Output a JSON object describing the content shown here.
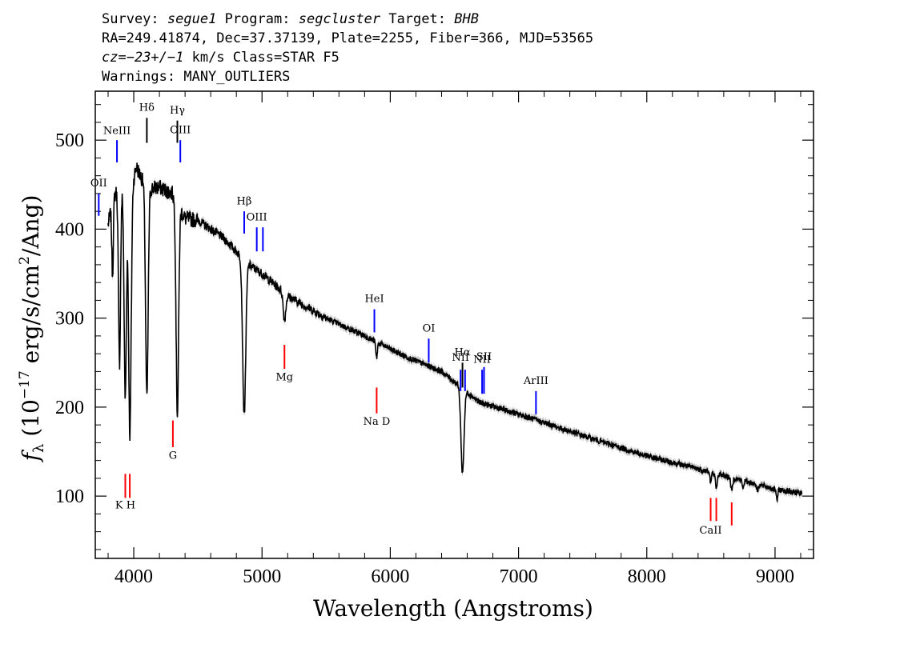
{
  "header": {
    "survey_label": "Survey:",
    "survey": "segue1",
    "program_label": "Program:",
    "program": "segcluster",
    "target_label": "Target:",
    "target": "BHB",
    "line2": "RA=249.41874, Dec=37.37139, Plate=2255, Fiber=366, MJD=53565",
    "cz_label": "cz=",
    "cz_value": "−23+/−1",
    "cz_units": " km/s Class=STAR F5",
    "warnings": "Warnings: MANY_OUTLIERS"
  },
  "chart_data": {
    "type": "line",
    "title": "",
    "xlabel": "Wavelength (Angstroms)",
    "ylabel": "f_λ (10^-17 erg/s/cm^2/Ang)",
    "xlim": [
      3700,
      9300
    ],
    "ylim": [
      30,
      555
    ],
    "x_ticks": [
      4000,
      5000,
      6000,
      7000,
      8000,
      9000
    ],
    "y_ticks": [
      100,
      200,
      300,
      400,
      500
    ],
    "colors": {
      "spectrum": "#000000",
      "error_band": "#b0b0b0",
      "emission": "#0000ff",
      "absorption": "#ff0000",
      "neutral": "#000000"
    },
    "continuum": {
      "x": [
        3800,
        3850,
        3900,
        4000,
        4020,
        4100,
        4200,
        4300,
        4400,
        4500,
        4700,
        4900,
        5000,
        5200,
        5500,
        5800,
        6100,
        6400,
        6700,
        7000,
        7500,
        8000,
        8500,
        9000,
        9200
      ],
      "y": [
        405,
        440,
        445,
        458,
        470,
        445,
        447,
        440,
        412,
        410,
        390,
        360,
        350,
        325,
        300,
        280,
        258,
        240,
        205,
        192,
        168,
        145,
        127,
        108,
        103
      ]
    },
    "absorption_features": [
      {
        "center": 3835,
        "depth": 80,
        "width": 6
      },
      {
        "center": 3889,
        "depth": 195,
        "width": 8
      },
      {
        "center": 3934,
        "depth": 240,
        "width": 9
      },
      {
        "center": 3970,
        "depth": 285,
        "width": 10
      },
      {
        "center": 4102,
        "depth": 235,
        "width": 10
      },
      {
        "center": 4340,
        "depth": 235,
        "width": 10
      },
      {
        "center": 4861,
        "depth": 175,
        "width": 12
      },
      {
        "center": 5175,
        "depth": 30,
        "width": 10
      },
      {
        "center": 5893,
        "depth": 18,
        "width": 6
      },
      {
        "center": 6563,
        "depth": 95,
        "width": 12
      },
      {
        "center": 8498,
        "depth": 12,
        "width": 6
      },
      {
        "center": 8542,
        "depth": 18,
        "width": 7
      },
      {
        "center": 8662,
        "depth": 15,
        "width": 7
      },
      {
        "center": 8750,
        "depth": 8,
        "width": 6
      },
      {
        "center": 8863,
        "depth": 7,
        "width": 6
      },
      {
        "center": 9015,
        "depth": 12,
        "width": 6
      }
    ],
    "line_markers": [
      {
        "label": "NeIII",
        "wave": 3869,
        "color": "blue",
        "y0": 475,
        "y1": 500,
        "label_y": 507
      },
      {
        "label": "OII",
        "wave": 3727,
        "color": "blue",
        "y0": 415,
        "y1": 440,
        "label_y": 448
      },
      {
        "label": "Hδ",
        "wave": 4102,
        "color": "black",
        "y0": 497,
        "y1": 525,
        "label_y": 533
      },
      {
        "label": "Hγ",
        "wave": 4340,
        "color": "black",
        "y0": 497,
        "y1": 522,
        "label_y": 530
      },
      {
        "label": "OIII",
        "wave": 4363,
        "color": "blue",
        "y0": 475,
        "y1": 500,
        "label_y": 508
      },
      {
        "label": "Hβ",
        "wave": 4861,
        "color": "blue",
        "y0": 395,
        "y1": 420,
        "label_y": 428
      },
      {
        "label": "OIII",
        "wave": 4959,
        "color": "blue",
        "y0": 375,
        "y1": 402,
        "label_y": 410
      },
      {
        "label": "",
        "wave": 5007,
        "color": "blue",
        "y0": 375,
        "y1": 402,
        "label_y": 0
      },
      {
        "label": "HeI",
        "wave": 5876,
        "color": "blue",
        "y0": 284,
        "y1": 310,
        "label_y": 318
      },
      {
        "label": "OI",
        "wave": 6300,
        "color": "blue",
        "y0": 250,
        "y1": 277,
        "label_y": 285
      },
      {
        "label": "NII",
        "wave": 6548,
        "color": "blue",
        "y0": 218,
        "y1": 242,
        "label_y": 252
      },
      {
        "label": "Hα",
        "wave": 6563,
        "color": "black",
        "y0": 222,
        "y1": 250,
        "label_y": 258
      },
      {
        "label": "",
        "wave": 6583,
        "color": "blue",
        "y0": 218,
        "y1": 242,
        "label_y": 0
      },
      {
        "label": "NII",
        "wave": 6716,
        "color": "blue",
        "y0": 215,
        "y1": 242,
        "label_y": 250
      },
      {
        "label": "SII",
        "wave": 6731,
        "color": "blue",
        "y0": 215,
        "y1": 245,
        "label_y": 253
      },
      {
        "label": "ArIII",
        "wave": 7136,
        "color": "blue",
        "y0": 192,
        "y1": 218,
        "label_y": 226
      },
      {
        "label": "G",
        "wave": 4305,
        "color": "red",
        "y0": 155,
        "y1": 185,
        "label_y": 142
      },
      {
        "label": "Mg",
        "wave": 5175,
        "color": "red",
        "y0": 243,
        "y1": 270,
        "label_y": 230
      },
      {
        "label": "Na D",
        "wave": 5894,
        "color": "red",
        "y0": 193,
        "y1": 222,
        "label_y": 180
      },
      {
        "label": "K H",
        "wave": 3934,
        "color": "red",
        "y0": 98,
        "y1": 125,
        "label_y": 86
      },
      {
        "label": "",
        "wave": 3969,
        "color": "red",
        "y0": 98,
        "y1": 125,
        "label_y": 0
      },
      {
        "label": "CaII",
        "wave": 8498,
        "color": "red",
        "y0": 72,
        "y1": 98,
        "label_y": 58
      },
      {
        "label": "",
        "wave": 8542,
        "color": "red",
        "y0": 72,
        "y1": 98,
        "label_y": 0
      },
      {
        "label": "",
        "wave": 8662,
        "color": "red",
        "y0": 67,
        "y1": 93,
        "label_y": 0
      }
    ]
  }
}
